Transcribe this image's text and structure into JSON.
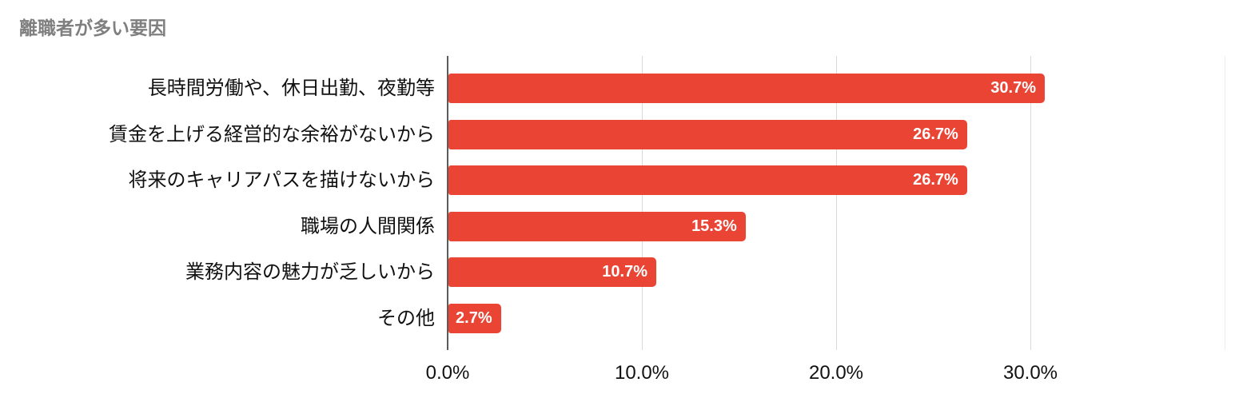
{
  "chart_data": {
    "type": "bar",
    "orientation": "horizontal",
    "title": "離職者が多い要因",
    "categories": [
      "長時間労働や、休日出勤、夜勤等",
      "賃金を上げる経営的な余裕がないから",
      "将来のキャリアパスを描けないから",
      "職場の人間関係",
      "業務内容の魅力が乏しいから",
      "その他"
    ],
    "values": [
      30.7,
      26.7,
      26.7,
      15.3,
      10.7,
      2.7
    ],
    "value_labels": [
      "30.7%",
      "26.7%",
      "26.7%",
      "15.3%",
      "10.7%",
      "2.7%"
    ],
    "value_label_position": "inside-end",
    "xlim": [
      0,
      40
    ],
    "x_ticks": [
      {
        "value": 0,
        "label": "0.0%"
      },
      {
        "value": 10,
        "label": "10.0%"
      },
      {
        "value": 20,
        "label": "20.0%"
      },
      {
        "value": 30,
        "label": "30.0%"
      },
      {
        "value": 40,
        "label": ""
      }
    ],
    "grid": "vertical",
    "legend": "none",
    "colors": {
      "bar": "#EA4435",
      "title_text": "#7F7F7F",
      "axis_line": "#5C5C5C",
      "gridline": "#D9D9D9",
      "edge_gridline": "#EDEDED",
      "label_text": "#111111",
      "value_text": "#FFFFFF",
      "background": "#FFFFFF"
    }
  }
}
